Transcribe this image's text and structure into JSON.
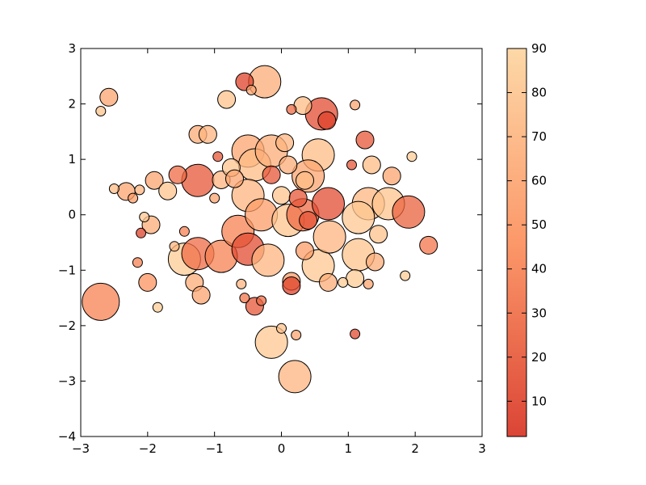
{
  "chart_data": {
    "type": "scatter",
    "title": "",
    "xlabel": "",
    "ylabel": "",
    "xlim": [
      -3,
      3
    ],
    "ylim": [
      -4,
      3
    ],
    "xticks": [
      -3,
      -2,
      -1,
      0,
      1,
      2,
      3
    ],
    "yticks": [
      -4,
      -3,
      -2,
      -1,
      0,
      1,
      2,
      3
    ],
    "grid": false,
    "colormap": "OrRd_r (dark red to light peach)",
    "colors": {
      "low": "#d7301f",
      "mid": "#fc8d59",
      "high": "#fdd49e"
    },
    "marker_edge_color": "#000000",
    "alpha": 0.75,
    "colorbar": {
      "min": 2,
      "max": 90,
      "ticks": [
        10,
        20,
        30,
        40,
        50,
        60,
        70,
        80,
        90
      ]
    },
    "points": [
      {
        "x": -2.7,
        "y": -1.57,
        "size": 23,
        "color": 40
      },
      {
        "x": -2.58,
        "y": 2.12,
        "size": 11,
        "color": 60
      },
      {
        "x": -2.7,
        "y": 1.87,
        "size": 6,
        "color": 80
      },
      {
        "x": -2.5,
        "y": 0.47,
        "size": 6,
        "color": 75
      },
      {
        "x": -2.32,
        "y": 0.42,
        "size": 11,
        "color": 60
      },
      {
        "x": -2.22,
        "y": 0.3,
        "size": 6,
        "color": 55
      },
      {
        "x": -2.12,
        "y": 0.45,
        "size": 6,
        "color": 70
      },
      {
        "x": -2.1,
        "y": -0.33,
        "size": 6,
        "color": 10
      },
      {
        "x": -2.05,
        "y": -0.04,
        "size": 6,
        "color": 82
      },
      {
        "x": -1.95,
        "y": -0.18,
        "size": 11,
        "color": 65
      },
      {
        "x": -2.0,
        "y": -1.22,
        "size": 11,
        "color": 50
      },
      {
        "x": -2.15,
        "y": -0.86,
        "size": 6,
        "color": 40
      },
      {
        "x": -1.85,
        "y": -1.67,
        "size": 6,
        "color": 85
      },
      {
        "x": -1.9,
        "y": 0.62,
        "size": 11,
        "color": 60
      },
      {
        "x": -1.7,
        "y": 0.43,
        "size": 11,
        "color": 80
      },
      {
        "x": -1.55,
        "y": 0.72,
        "size": 11,
        "color": 30
      },
      {
        "x": -1.6,
        "y": -0.57,
        "size": 6,
        "color": 70
      },
      {
        "x": -1.45,
        "y": -0.3,
        "size": 6,
        "color": 40
      },
      {
        "x": -1.45,
        "y": -0.8,
        "size": 20,
        "color": 85
      },
      {
        "x": -1.25,
        "y": -0.7,
        "size": 20,
        "color": 30
      },
      {
        "x": -1.3,
        "y": -1.22,
        "size": 11,
        "color": 65
      },
      {
        "x": -1.2,
        "y": -1.45,
        "size": 11,
        "color": 60
      },
      {
        "x": -1.25,
        "y": 1.45,
        "size": 11,
        "color": 65
      },
      {
        "x": -1.1,
        "y": 1.45,
        "size": 11,
        "color": 70
      },
      {
        "x": -1.25,
        "y": 0.62,
        "size": 20,
        "color": 20
      },
      {
        "x": -1.0,
        "y": 0.3,
        "size": 6,
        "color": 60
      },
      {
        "x": -0.95,
        "y": 1.05,
        "size": 6,
        "color": 20
      },
      {
        "x": -0.82,
        "y": 2.08,
        "size": 11,
        "color": 78
      },
      {
        "x": -0.9,
        "y": 0.63,
        "size": 11,
        "color": 70
      },
      {
        "x": -0.75,
        "y": 0.85,
        "size": 11,
        "color": 80
      },
      {
        "x": -0.7,
        "y": 0.65,
        "size": 11,
        "color": 60
      },
      {
        "x": -0.9,
        "y": -0.75,
        "size": 20,
        "color": 40
      },
      {
        "x": -0.6,
        "y": -1.25,
        "size": 6,
        "color": 70
      },
      {
        "x": -0.55,
        "y": -1.5,
        "size": 6,
        "color": 35
      },
      {
        "x": -0.4,
        "y": -1.65,
        "size": 11,
        "color": 20
      },
      {
        "x": -0.3,
        "y": -1.55,
        "size": 6,
        "color": 30
      },
      {
        "x": -0.55,
        "y": 2.4,
        "size": 11,
        "color": 10
      },
      {
        "x": -0.45,
        "y": 2.25,
        "size": 6,
        "color": 60
      },
      {
        "x": -0.25,
        "y": 2.4,
        "size": 20,
        "color": 65
      },
      {
        "x": -0.65,
        "y": -0.3,
        "size": 20,
        "color": 40
      },
      {
        "x": -0.5,
        "y": -0.62,
        "size": 20,
        "color": 15
      },
      {
        "x": -0.5,
        "y": 1.15,
        "size": 20,
        "color": 60
      },
      {
        "x": -0.4,
        "y": 0.9,
        "size": 20,
        "color": 75
      },
      {
        "x": -0.5,
        "y": 0.35,
        "size": 20,
        "color": 70
      },
      {
        "x": -0.3,
        "y": 0.0,
        "size": 20,
        "color": 55
      },
      {
        "x": -0.2,
        "y": -0.82,
        "size": 20,
        "color": 70
      },
      {
        "x": -0.15,
        "y": 0.72,
        "size": 11,
        "color": 20
      },
      {
        "x": -0.15,
        "y": 1.15,
        "size": 20,
        "color": 65
      },
      {
        "x": 0.05,
        "y": 1.3,
        "size": 11,
        "color": 70
      },
      {
        "x": 0.1,
        "y": 0.9,
        "size": 11,
        "color": 65
      },
      {
        "x": 0.0,
        "y": 0.35,
        "size": 11,
        "color": 80
      },
      {
        "x": 0.1,
        "y": -0.1,
        "size": 20,
        "color": 80
      },
      {
        "x": 0.15,
        "y": -1.2,
        "size": 11,
        "color": 55
      },
      {
        "x": 0.15,
        "y": -1.28,
        "size": 11,
        "color": 10
      },
      {
        "x": 0.0,
        "y": -2.05,
        "size": 6,
        "color": 78
      },
      {
        "x": -0.15,
        "y": -2.3,
        "size": 20,
        "color": 82
      },
      {
        "x": 0.2,
        "y": -2.92,
        "size": 20,
        "color": 70
      },
      {
        "x": 0.22,
        "y": -2.17,
        "size": 6,
        "color": 60
      },
      {
        "x": 0.15,
        "y": 1.9,
        "size": 6,
        "color": 30
      },
      {
        "x": 0.32,
        "y": 1.97,
        "size": 11,
        "color": 75
      },
      {
        "x": 0.6,
        "y": 1.82,
        "size": 20,
        "color": 15
      },
      {
        "x": 0.68,
        "y": 1.7,
        "size": 11,
        "color": 10
      },
      {
        "x": 0.55,
        "y": 1.08,
        "size": 20,
        "color": 75
      },
      {
        "x": 0.4,
        "y": 0.7,
        "size": 20,
        "color": 60
      },
      {
        "x": 0.35,
        "y": 0.62,
        "size": 11,
        "color": 75
      },
      {
        "x": 0.25,
        "y": 0.3,
        "size": 11,
        "color": 20
      },
      {
        "x": 0.32,
        "y": 0.0,
        "size": 20,
        "color": 30
      },
      {
        "x": 0.4,
        "y": -0.1,
        "size": 11,
        "color": 20
      },
      {
        "x": 0.35,
        "y": -0.65,
        "size": 11,
        "color": 55
      },
      {
        "x": 0.55,
        "y": -0.92,
        "size": 20,
        "color": 82
      },
      {
        "x": 0.7,
        "y": 0.2,
        "size": 20,
        "color": 15
      },
      {
        "x": 0.72,
        "y": -0.4,
        "size": 20,
        "color": 70
      },
      {
        "x": 0.7,
        "y": -1.22,
        "size": 11,
        "color": 65
      },
      {
        "x": 0.92,
        "y": -1.22,
        "size": 6,
        "color": 85
      },
      {
        "x": 1.1,
        "y": 1.98,
        "size": 6,
        "color": 60
      },
      {
        "x": 1.05,
        "y": 0.9,
        "size": 6,
        "color": 20
      },
      {
        "x": 1.25,
        "y": 1.35,
        "size": 11,
        "color": 20
      },
      {
        "x": 1.35,
        "y": 0.9,
        "size": 11,
        "color": 75
      },
      {
        "x": 1.3,
        "y": 0.2,
        "size": 20,
        "color": 72
      },
      {
        "x": 1.15,
        "y": -0.05,
        "size": 20,
        "color": 82
      },
      {
        "x": 1.45,
        "y": -0.35,
        "size": 11,
        "color": 78
      },
      {
        "x": 1.15,
        "y": -0.72,
        "size": 20,
        "color": 80
      },
      {
        "x": 1.4,
        "y": -0.85,
        "size": 11,
        "color": 65
      },
      {
        "x": 1.1,
        "y": -1.15,
        "size": 11,
        "color": 85
      },
      {
        "x": 1.3,
        "y": -1.25,
        "size": 6,
        "color": 60
      },
      {
        "x": 1.1,
        "y": -2.15,
        "size": 6,
        "color": 15
      },
      {
        "x": 1.6,
        "y": 0.2,
        "size": 20,
        "color": 80
      },
      {
        "x": 1.65,
        "y": 0.7,
        "size": 11,
        "color": 60
      },
      {
        "x": 1.9,
        "y": 0.05,
        "size": 20,
        "color": 25
      },
      {
        "x": 1.95,
        "y": 1.05,
        "size": 6,
        "color": 85
      },
      {
        "x": 1.85,
        "y": -1.1,
        "size": 6,
        "color": 85
      },
      {
        "x": 2.2,
        "y": -0.55,
        "size": 11,
        "color": 35
      }
    ]
  }
}
